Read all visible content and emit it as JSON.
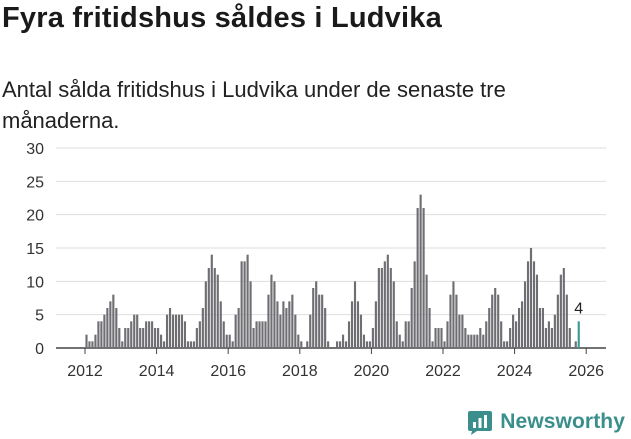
{
  "header": {
    "title": "Fyra fritidshus såldes i Ludvika",
    "subtitle": "Antal sålda fritidshus i Ludvika under de senaste tre månaderna."
  },
  "brand": {
    "name": "Newsworthy",
    "color": "#3a8f8c"
  },
  "chart_data": {
    "type": "bar",
    "title": "",
    "xlabel": "",
    "ylabel": "",
    "ylim": [
      0,
      30
    ],
    "yticks": [
      0,
      5,
      10,
      15,
      20,
      25,
      30
    ],
    "xticks": [
      {
        "label": "2012",
        "at": 2012.0
      },
      {
        "label": "2014",
        "at": 2014.0
      },
      {
        "label": "2016",
        "at": 2016.0
      },
      {
        "label": "2018",
        "at": 2018.0
      },
      {
        "label": "2020",
        "at": 2020.0
      },
      {
        "label": "2022",
        "at": 2022.0
      },
      {
        "label": "2024",
        "at": 2024.0
      },
      {
        "label": "2026",
        "at": 2026.0
      }
    ],
    "grid": true,
    "start": "2012-01",
    "period": "month",
    "bar_color": "#6f6e73",
    "highlight_color": "#3a9a96",
    "highlight_last": true,
    "last_label": "4",
    "values": [
      2,
      1,
      1,
      2,
      4,
      4,
      5,
      6,
      7,
      8,
      6,
      3,
      1,
      3,
      3,
      4,
      5,
      5,
      3,
      3,
      4,
      4,
      4,
      3,
      3,
      2,
      1,
      5,
      6,
      5,
      5,
      5,
      5,
      4,
      1,
      1,
      1,
      3,
      4,
      6,
      10,
      12,
      14,
      12,
      11,
      7,
      4,
      2,
      2,
      1,
      5,
      6,
      13,
      13,
      14,
      10,
      3,
      4,
      4,
      4,
      4,
      8,
      11,
      10,
      7,
      5,
      7,
      6,
      7,
      8,
      5,
      2,
      1,
      0,
      1,
      5,
      9,
      10,
      8,
      8,
      6,
      1,
      0,
      0,
      1,
      1,
      2,
      1,
      4,
      7,
      10,
      7,
      5,
      2,
      1,
      1,
      3,
      7,
      12,
      12,
      13,
      14,
      12,
      10,
      4,
      2,
      1,
      4,
      4,
      9,
      13,
      21,
      23,
      21,
      11,
      6,
      1,
      3,
      3,
      3,
      1,
      4,
      8,
      10,
      8,
      5,
      5,
      3,
      2,
      2,
      2,
      2,
      3,
      2,
      4,
      6,
      8,
      9,
      8,
      4,
      1,
      1,
      3,
      5,
      4,
      6,
      7,
      10,
      13,
      15,
      13,
      11,
      6,
      6,
      3,
      4,
      3,
      5,
      8,
      11,
      12,
      8,
      3,
      0,
      1,
      4
    ]
  }
}
